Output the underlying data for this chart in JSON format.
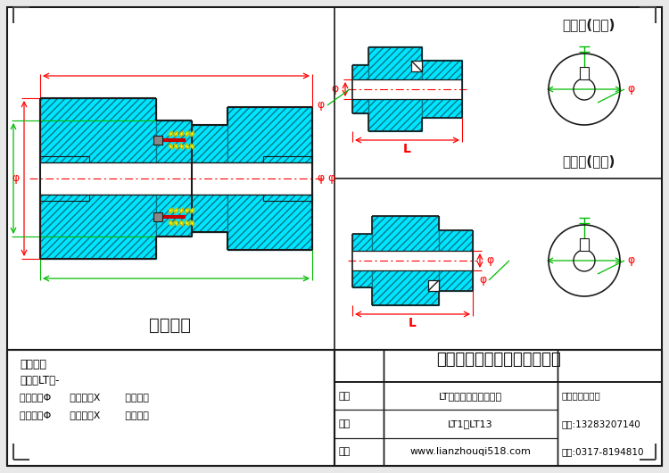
{
  "bg_color": "#e8e8e8",
  "drawing_bg": "#ffffff",
  "cyan_fill": "#00e5ff",
  "yellow_fill": "#ffff00",
  "title_company": "泊头市通佳机械设备有限公司",
  "title_main": "主动端(薄盘)",
  "title_slave": "从动端(厚盘)",
  "label_outline": "外形尺寸",
  "text_note": "文字标注",
  "text_model": "型号：LT型-",
  "text_drive": "主动端：Φ      （孔径）X        （孔长）",
  "text_driven": "从动端：Φ      （孔径）X        （孔长）",
  "tb_name_label": "名称",
  "tb_name_val": "LT型弹性套柱销联轴器",
  "tb_apply_label": "适用",
  "tb_apply_val": "LT1－LT13",
  "tb_web_label": "网址",
  "tb_web_val": "www.lianzhouqi518.com",
  "tb_contact": "联系人：张经理",
  "tb_phone": "手机:13283207140",
  "tb_tel": "电话:0317-8194810"
}
